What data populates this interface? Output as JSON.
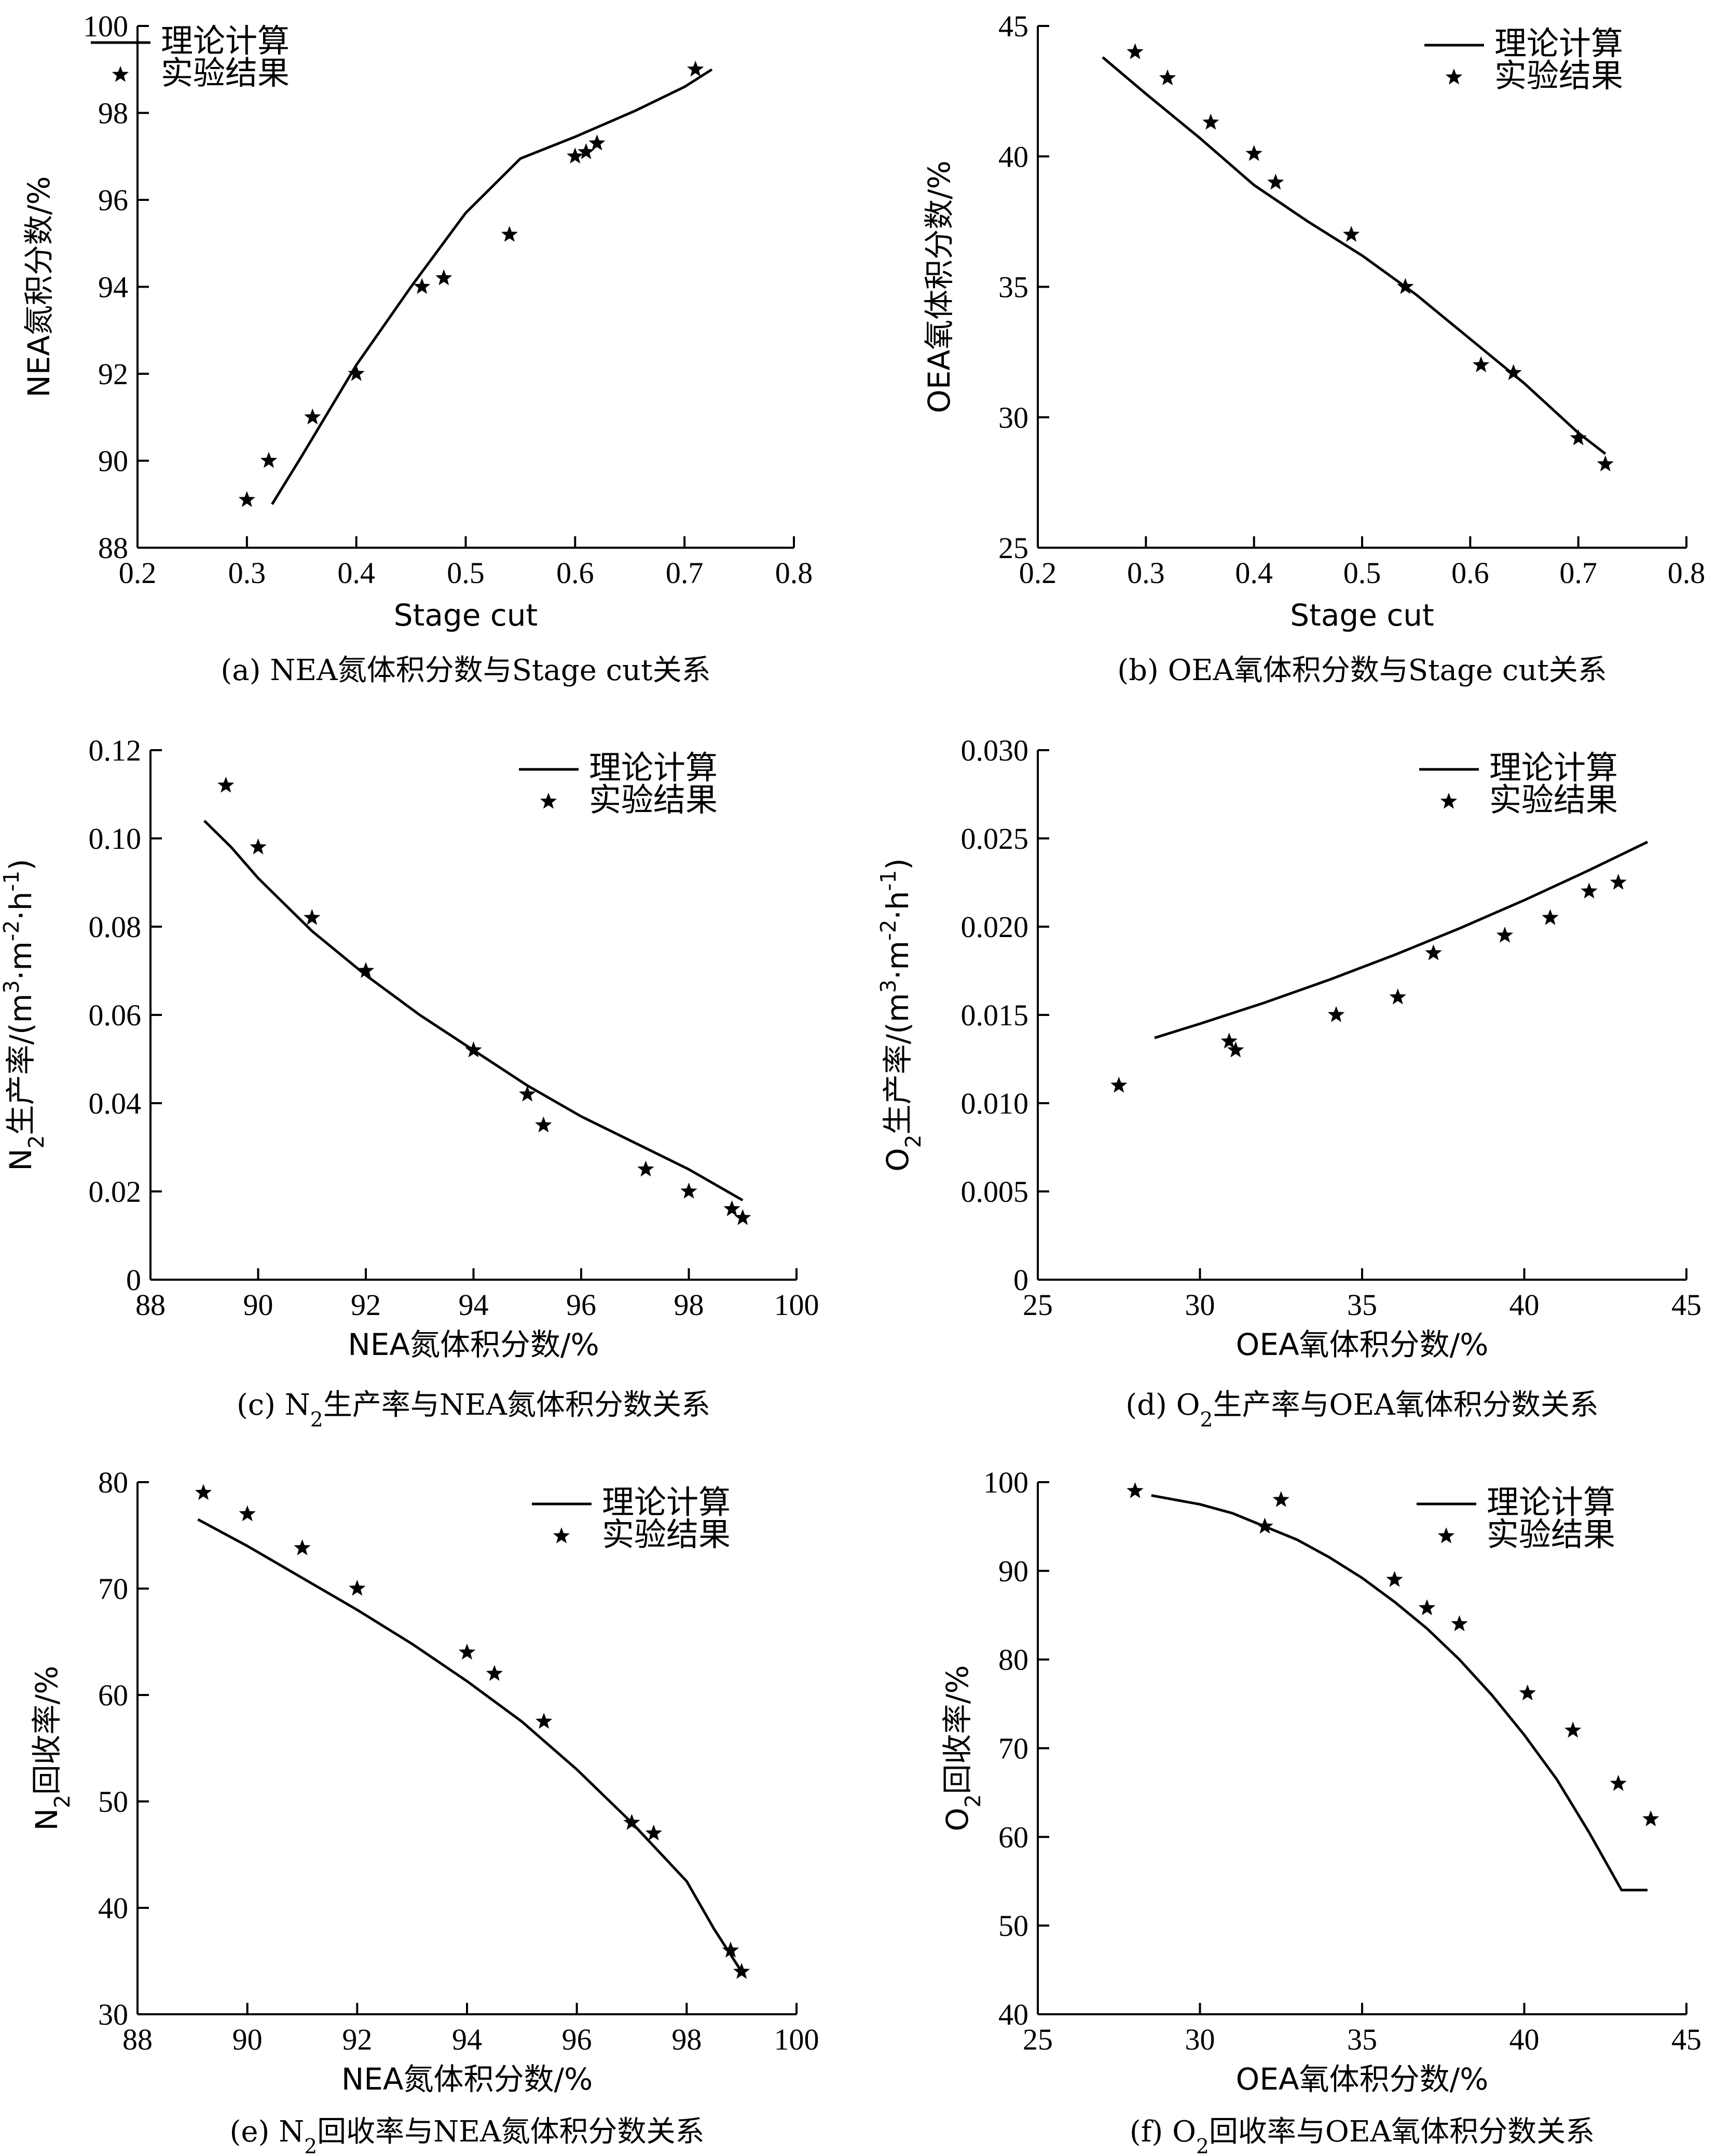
{
  "chart_data": [
    {
      "id": "a",
      "type": "scatter",
      "caption": "(a) NEA氮体积分数与Stage cut关系",
      "xlabel": "Stage cut",
      "ylabel": "NEA氮积分数/%",
      "xlim": [
        0.2,
        0.8
      ],
      "ylim": [
        88,
        100
      ],
      "xticks": [
        0.2,
        0.3,
        0.4,
        0.5,
        0.6,
        0.7,
        0.8
      ],
      "yticks": [
        88,
        90,
        92,
        94,
        96,
        98,
        100
      ],
      "xtick_labels": [
        "0.2",
        "0.3",
        "0.4",
        "0.5",
        "0.6",
        "0.7",
        "0.8"
      ],
      "ytick_labels": [
        "88",
        "90",
        "92",
        "94",
        "96",
        "98",
        "100"
      ],
      "legend_position": "top-left",
      "series": [
        {
          "name": "理论计算",
          "mode": "line",
          "x": [
            0.323,
            0.35,
            0.4,
            0.45,
            0.5,
            0.55,
            0.6,
            0.655,
            0.7,
            0.725
          ],
          "y": [
            89.0,
            90.1,
            92.2,
            94.0,
            95.7,
            96.95,
            97.45,
            98.05,
            98.6,
            99.0
          ]
        },
        {
          "name": "实验结果",
          "mode": "marker",
          "x": [
            0.3,
            0.32,
            0.36,
            0.4,
            0.46,
            0.48,
            0.54,
            0.6,
            0.61,
            0.62,
            0.71
          ],
          "y": [
            89.1,
            90.0,
            91.0,
            92.0,
            94.0,
            94.2,
            95.2,
            97.0,
            97.1,
            97.3,
            99.0
          ]
        }
      ]
    },
    {
      "id": "b",
      "type": "scatter",
      "caption": "(b) OEA氧体积分数与Stage cut关系",
      "xlabel": "Stage cut",
      "ylabel": "OEA氧体积分数/%",
      "xlim": [
        0.2,
        0.8
      ],
      "ylim": [
        25,
        45
      ],
      "xticks": [
        0.2,
        0.3,
        0.4,
        0.5,
        0.6,
        0.7,
        0.8
      ],
      "yticks": [
        25,
        30,
        35,
        40,
        45
      ],
      "xtick_labels": [
        "0.2",
        "0.3",
        "0.4",
        "0.5",
        "0.6",
        "0.7",
        "0.8"
      ],
      "ytick_labels": [
        "25",
        "30",
        "35",
        "40",
        "45"
      ],
      "legend_position": "top-right",
      "series": [
        {
          "name": "理论计算",
          "mode": "line",
          "x": [
            0.26,
            0.3,
            0.35,
            0.4,
            0.45,
            0.5,
            0.55,
            0.6,
            0.65,
            0.7,
            0.725
          ],
          "y": [
            43.8,
            42.4,
            40.7,
            38.9,
            37.5,
            36.2,
            34.7,
            33.0,
            31.3,
            29.4,
            28.6
          ]
        },
        {
          "name": "实验结果",
          "mode": "marker",
          "x": [
            0.29,
            0.32,
            0.36,
            0.4,
            0.42,
            0.49,
            0.54,
            0.61,
            0.64,
            0.7,
            0.725
          ],
          "y": [
            44.0,
            43.0,
            41.3,
            40.1,
            39.0,
            37.0,
            35.0,
            32.0,
            31.7,
            29.2,
            28.2
          ]
        }
      ]
    },
    {
      "id": "c",
      "type": "scatter",
      "caption": "(c) N₂生产率与NEA氮体积分数关系",
      "xlabel": "NEA氮体积分数/%",
      "ylabel": "N₂生产率/(m³·m⁻²·h⁻¹)",
      "xlim": [
        88,
        100
      ],
      "ylim": [
        0,
        0.12
      ],
      "xticks": [
        88,
        90,
        92,
        94,
        96,
        98,
        100
      ],
      "yticks": [
        0,
        0.02,
        0.04,
        0.06,
        0.08,
        0.1,
        0.12
      ],
      "xtick_labels": [
        "88",
        "90",
        "92",
        "94",
        "96",
        "98",
        "100"
      ],
      "ytick_labels": [
        "0",
        "0.02",
        "0.04",
        "0.06",
        "0.08",
        "0.10",
        "0.12"
      ],
      "legend_position": "top-right",
      "series": [
        {
          "name": "理论计算",
          "mode": "line",
          "x": [
            89.0,
            89.5,
            90.0,
            91.0,
            92.0,
            93.0,
            94.0,
            95.0,
            96.0,
            97.0,
            98.0,
            99.0
          ],
          "y": [
            0.104,
            0.098,
            0.091,
            0.079,
            0.069,
            0.06,
            0.052,
            0.044,
            0.037,
            0.031,
            0.025,
            0.018
          ]
        },
        {
          "name": "实验结果",
          "mode": "marker",
          "x": [
            89.4,
            90.0,
            91.0,
            92.0,
            94.0,
            95.0,
            95.3,
            97.2,
            98.0,
            98.8,
            99.0
          ],
          "y": [
            0.112,
            0.098,
            0.082,
            0.07,
            0.052,
            0.042,
            0.035,
            0.025,
            0.02,
            0.016,
            0.014
          ]
        }
      ]
    },
    {
      "id": "d",
      "type": "scatter",
      "caption": "(d) O₂生产率与OEA氧体积分数关系",
      "xlabel": "OEA氧体积分数/%",
      "ylabel": "O₂生产率/(m³·m⁻²·h⁻¹)",
      "xlim": [
        25,
        45
      ],
      "ylim": [
        0,
        0.03
      ],
      "xticks": [
        25,
        30,
        35,
        40,
        45
      ],
      "yticks": [
        0,
        0.005,
        0.01,
        0.015,
        0.02,
        0.025,
        0.03
      ],
      "xtick_labels": [
        "25",
        "30",
        "35",
        "40",
        "45"
      ],
      "ytick_labels": [
        "0",
        "0.005",
        "0.010",
        "0.015",
        "0.020",
        "0.025",
        "0.030"
      ],
      "legend_position": "top-right",
      "series": [
        {
          "name": "理论计算",
          "mode": "line",
          "x": [
            28.6,
            30.0,
            32.0,
            34.0,
            36.0,
            38.0,
            40.0,
            42.0,
            43.8
          ],
          "y": [
            0.0137,
            0.0145,
            0.0157,
            0.017,
            0.0184,
            0.0199,
            0.0215,
            0.0232,
            0.0248
          ]
        },
        {
          "name": "实验结果",
          "mode": "marker",
          "x": [
            27.5,
            30.9,
            31.1,
            34.2,
            36.1,
            37.2,
            39.4,
            40.8,
            42.0,
            42.9
          ],
          "y": [
            0.011,
            0.0135,
            0.013,
            0.015,
            0.016,
            0.0185,
            0.0195,
            0.0205,
            0.022,
            0.0225
          ]
        }
      ]
    },
    {
      "id": "e",
      "type": "scatter",
      "caption": "(e) N₂回收率与NEA氮体积分数关系",
      "xlabel": "NEA氮体积分数/%",
      "ylabel": "N₂回收率/%",
      "xlim": [
        88,
        100
      ],
      "ylim": [
        30,
        80
      ],
      "xticks": [
        88,
        90,
        92,
        94,
        96,
        98,
        100
      ],
      "yticks": [
        30,
        40,
        50,
        60,
        70,
        80
      ],
      "xtick_labels": [
        "88",
        "90",
        "92",
        "94",
        "96",
        "98",
        "100"
      ],
      "ytick_labels": [
        "30",
        "40",
        "50",
        "60",
        "70",
        "80"
      ],
      "legend_position": "top-right",
      "series": [
        {
          "name": "理论计算",
          "mode": "line",
          "x": [
            89.1,
            90.0,
            91.0,
            92.0,
            93.0,
            94.0,
            95.0,
            96.0,
            97.0,
            98.0,
            98.5,
            99.0
          ],
          "y": [
            76.5,
            74.0,
            71.0,
            68.0,
            64.8,
            61.3,
            57.5,
            53.0,
            48.0,
            42.5,
            38.0,
            34.0
          ]
        },
        {
          "name": "实验结果",
          "mode": "marker",
          "x": [
            89.2,
            90.0,
            91.0,
            92.0,
            94.0,
            94.5,
            95.4,
            97.0,
            97.4,
            98.8,
            99.0
          ],
          "y": [
            79.0,
            77.0,
            73.8,
            70.0,
            64.0,
            62.0,
            57.5,
            48.0,
            47.0,
            36.0,
            34.0
          ]
        }
      ]
    },
    {
      "id": "f",
      "type": "scatter",
      "caption": "(f) O₂回收率与OEA氧体积分数关系",
      "xlabel": "OEA氧体积分数/%",
      "ylabel": "O₂回收率/%",
      "xlim": [
        25,
        45
      ],
      "ylim": [
        40,
        100
      ],
      "xticks": [
        25,
        30,
        35,
        40,
        45
      ],
      "yticks": [
        40,
        50,
        60,
        70,
        80,
        90,
        100
      ],
      "xtick_labels": [
        "25",
        "30",
        "35",
        "40",
        "45"
      ],
      "ytick_labels": [
        "40",
        "50",
        "60",
        "70",
        "80",
        "90",
        "100"
      ],
      "legend_position": "top-right",
      "series": [
        {
          "name": "理论计算",
          "mode": "line",
          "x": [
            28.5,
            30.0,
            31.0,
            32.0,
            33.0,
            34.0,
            35.0,
            36.0,
            37.0,
            38.0,
            39.0,
            40.0,
            41.0,
            42.0,
            43.0,
            43.8
          ],
          "y": [
            98.5,
            97.5,
            96.5,
            95.0,
            93.5,
            91.5,
            89.2,
            86.5,
            83.5,
            80.0,
            76.0,
            71.5,
            66.5,
            60.5,
            54.0,
            54.0
          ]
        },
        {
          "name": "实验结果",
          "mode": "marker",
          "x": [
            28.0,
            32.0,
            32.5,
            36.0,
            37.0,
            38.0,
            40.1,
            41.5,
            42.9,
            43.9
          ],
          "y": [
            99.0,
            95.0,
            98.0,
            89.0,
            85.8,
            84.0,
            76.2,
            72.0,
            66.0,
            62.0
          ]
        }
      ]
    }
  ]
}
